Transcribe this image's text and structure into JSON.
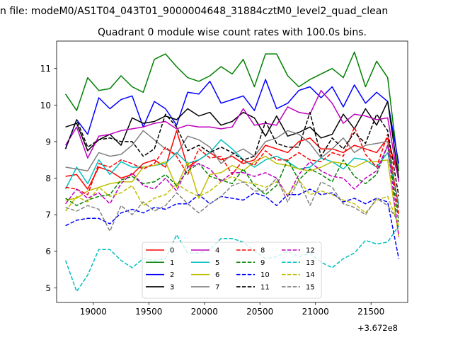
{
  "suptitle": "n file: modeM0/AS1T04_043T01_9000004648_31884cztM0_level2_quad_clean",
  "chart_data": {
    "type": "line",
    "title": "Quadrant 0 module wise count rates with 100.0s bins.",
    "xlabel": "",
    "ylabel": "",
    "x_offset_label": "+3.672e8",
    "x": [
      18750,
      18850,
      18950,
      19050,
      19150,
      19250,
      19350,
      19450,
      19550,
      19650,
      19750,
      19850,
      19950,
      20050,
      20150,
      20250,
      20350,
      20450,
      20550,
      20650,
      20750,
      20850,
      20950,
      21050,
      21150,
      21250,
      21350,
      21450,
      21550,
      21650,
      21750
    ],
    "xlim": [
      18670,
      21830
    ],
    "ylim": [
      4.6,
      11.75
    ],
    "xticks": [
      19000,
      19500,
      20000,
      20500,
      21000,
      21500
    ],
    "yticks": [
      5,
      6,
      7,
      8,
      9,
      10,
      11
    ],
    "grid": false,
    "legend": {
      "placement": "lower-center",
      "columns": 4
    },
    "series": [
      {
        "name": "0",
        "color": "#ff0000",
        "dash": "solid",
        "values": [
          8.05,
          8.1,
          7.7,
          8.3,
          8.2,
          8.0,
          8.1,
          8.4,
          8.5,
          8.3,
          9.3,
          8.3,
          8.5,
          8.7,
          8.5,
          8.6,
          8.4,
          8.5,
          8.9,
          8.8,
          8.7,
          9.0,
          9.1,
          8.8,
          8.8,
          8.7,
          8.9,
          8.8,
          8.7,
          9.1,
          8.0
        ]
      },
      {
        "name": "1",
        "color": "#008000",
        "dash": "solid",
        "values": [
          10.3,
          9.85,
          10.75,
          10.4,
          10.45,
          10.8,
          10.5,
          10.35,
          11.25,
          11.4,
          11.05,
          10.75,
          10.65,
          10.8,
          11.05,
          10.85,
          11.25,
          10.5,
          11.4,
          11.4,
          10.8,
          10.5,
          10.7,
          10.85,
          11.0,
          10.75,
          11.45,
          10.5,
          11.2,
          10.75,
          8.2
        ]
      },
      {
        "name": "2",
        "color": "#0000ff",
        "dash": "solid",
        "values": [
          8.8,
          9.6,
          9.2,
          10.2,
          9.9,
          10.15,
          10.25,
          9.4,
          10.1,
          9.9,
          9.45,
          10.35,
          10.3,
          10.65,
          10.05,
          10.15,
          10.25,
          9.85,
          10.7,
          9.9,
          10.05,
          10.4,
          10.5,
          10.2,
          10.5,
          9.95,
          10.55,
          10.05,
          10.35,
          10.1,
          8.4
        ]
      },
      {
        "name": "3",
        "color": "#000000",
        "dash": "solid",
        "values": [
          9.4,
          9.5,
          8.75,
          9.05,
          9.2,
          8.9,
          9.65,
          9.5,
          9.55,
          9.7,
          9.6,
          9.9,
          9.7,
          9.8,
          9.45,
          9.55,
          9.8,
          9.65,
          9.15,
          9.7,
          9.15,
          9.25,
          9.4,
          9.1,
          9.2,
          9.75,
          9.35,
          9.9,
          9.45,
          10.1,
          8.0
        ]
      },
      {
        "name": "4",
        "color": "#bf00bf",
        "dash": "solid",
        "values": [
          8.9,
          9.4,
          8.55,
          9.15,
          9.2,
          9.3,
          9.35,
          9.4,
          9.5,
          9.55,
          9.35,
          9.45,
          9.4,
          9.4,
          9.35,
          9.4,
          9.9,
          9.45,
          9.5,
          9.45,
          9.95,
          9.8,
          9.75,
          10.4,
          10.05,
          9.5,
          9.75,
          9.7,
          9.6,
          9.65,
          7.9
        ]
      },
      {
        "name": "5",
        "color": "#00bfbf",
        "dash": "solid",
        "values": [
          7.7,
          8.3,
          7.85,
          8.5,
          8.1,
          8.45,
          8.3,
          8.3,
          8.35,
          8.4,
          8.7,
          8.4,
          8.5,
          8.7,
          9.05,
          8.8,
          8.5,
          8.3,
          8.5,
          8.6,
          8.45,
          8.25,
          8.3,
          8.55,
          8.45,
          8.25,
          8.55,
          8.5,
          8.3,
          8.7,
          7.3
        ]
      },
      {
        "name": "6",
        "color": "#bfbf00",
        "dash": "solid",
        "values": [
          7.4,
          7.45,
          7.65,
          7.75,
          7.85,
          7.9,
          7.9,
          8.3,
          8.35,
          8.45,
          7.75,
          8.45,
          7.45,
          8.1,
          8.15,
          8.35,
          8.2,
          8.45,
          8.6,
          8.4,
          8.35,
          8.25,
          8.2,
          8.3,
          8.45,
          8.4,
          8.3,
          8.45,
          8.45,
          8.5,
          6.4
        ]
      },
      {
        "name": "7",
        "color": "#808080",
        "dash": "solid",
        "values": [
          8.3,
          8.25,
          8.2,
          8.7,
          8.6,
          8.65,
          8.9,
          9.3,
          9.05,
          8.8,
          8.65,
          9.15,
          9.05,
          8.85,
          8.4,
          8.65,
          8.8,
          8.6,
          9.0,
          9.1,
          9.3,
          9.2,
          8.95,
          8.55,
          8.8,
          9.1,
          8.7,
          8.9,
          8.95,
          9.0,
          7.2
        ]
      },
      {
        "name": "8",
        "color": "#ff0000",
        "dash": "dashed",
        "values": [
          7.75,
          7.7,
          7.55,
          8.4,
          8.3,
          8.5,
          8.4,
          8.25,
          8.4,
          8.85,
          8.6,
          8.1,
          8.8,
          8.55,
          8.6,
          8.1,
          8.5,
          8.35,
          8.75,
          8.5,
          8.5,
          8.7,
          8.5,
          8.45,
          8.7,
          8.6,
          9.4,
          8.65,
          8.3,
          9.2,
          7.0
        ]
      },
      {
        "name": "9",
        "color": "#008000",
        "dash": "dashed",
        "values": [
          7.45,
          7.25,
          7.4,
          7.5,
          7.55,
          7.95,
          8.05,
          7.85,
          7.9,
          8.1,
          7.8,
          8.2,
          8.4,
          8.05,
          7.95,
          7.85,
          8.25,
          7.8,
          7.55,
          7.8,
          8.5,
          7.95,
          8.25,
          8.1,
          7.9,
          8.5,
          8.05,
          7.85,
          8.1,
          8.9,
          6.8
        ]
      },
      {
        "name": "10",
        "color": "#0000ff",
        "dash": "dashed",
        "values": [
          6.7,
          6.85,
          6.9,
          6.9,
          6.75,
          7.05,
          7.15,
          7.05,
          7.2,
          7.15,
          7.3,
          7.3,
          7.55,
          7.3,
          7.5,
          7.45,
          7.4,
          7.6,
          7.5,
          7.25,
          7.55,
          7.55,
          7.7,
          7.55,
          7.6,
          7.35,
          7.45,
          7.3,
          7.45,
          7.35,
          5.8
        ]
      },
      {
        "name": "11",
        "color": "#000000",
        "dash": "dashed",
        "values": [
          8.8,
          9.6,
          8.85,
          9.05,
          9.1,
          9.0,
          9.0,
          8.6,
          8.8,
          9.75,
          9.4,
          8.75,
          8.9,
          8.7,
          8.85,
          8.7,
          8.5,
          8.6,
          9.55,
          8.95,
          8.85,
          8.85,
          9.8,
          8.6,
          9.1,
          8.8,
          9.25,
          8.95,
          9.75,
          9.3,
          7.5
        ]
      },
      {
        "name": "12",
        "color": "#bf00bf",
        "dash": "dashed",
        "values": [
          7.3,
          7.7,
          7.45,
          7.6,
          7.3,
          7.85,
          8.15,
          7.8,
          7.7,
          8.0,
          7.65,
          8.3,
          8.4,
          8.25,
          7.9,
          8.15,
          8.15,
          8.05,
          8.15,
          8.0,
          7.5,
          8.1,
          8.45,
          8.2,
          8.05,
          8.0,
          7.7,
          8.0,
          8.2,
          8.9,
          6.4
        ]
      },
      {
        "name": "13",
        "color": "#00bfbf",
        "dash": "dashed",
        "values": [
          5.75,
          4.9,
          5.35,
          6.05,
          6.05,
          5.75,
          5.55,
          5.8,
          5.75,
          5.8,
          6.45,
          5.95,
          5.95,
          6.05,
          6.35,
          6.35,
          6.25,
          6.0,
          5.8,
          5.85,
          6.0,
          5.85,
          5.95,
          5.7,
          5.55,
          5.8,
          5.95,
          6.3,
          6.2,
          6.25,
          6.7
        ]
      },
      {
        "name": "14",
        "color": "#bfbf00",
        "dash": "dashed",
        "values": [
          7.1,
          7.5,
          7.35,
          7.75,
          7.5,
          7.6,
          7.8,
          7.25,
          7.45,
          7.55,
          7.85,
          7.65,
          7.5,
          7.65,
          7.9,
          8.05,
          7.9,
          7.85,
          7.75,
          7.9,
          7.55,
          7.95,
          7.55,
          7.65,
          7.55,
          7.4,
          7.3,
          7.05,
          7.4,
          7.5,
          6.7
        ]
      },
      {
        "name": "15",
        "color": "#808080",
        "dash": "dashed",
        "values": [
          7.2,
          7.1,
          7.25,
          7.15,
          6.55,
          7.25,
          7.0,
          7.35,
          7.1,
          7.25,
          7.6,
          7.3,
          7.05,
          7.3,
          7.5,
          7.8,
          7.9,
          7.65,
          7.65,
          8.0,
          7.35,
          7.95,
          7.25,
          7.9,
          7.75,
          7.3,
          7.2,
          7.0,
          7.45,
          7.25,
          6.8
        ]
      }
    ]
  }
}
